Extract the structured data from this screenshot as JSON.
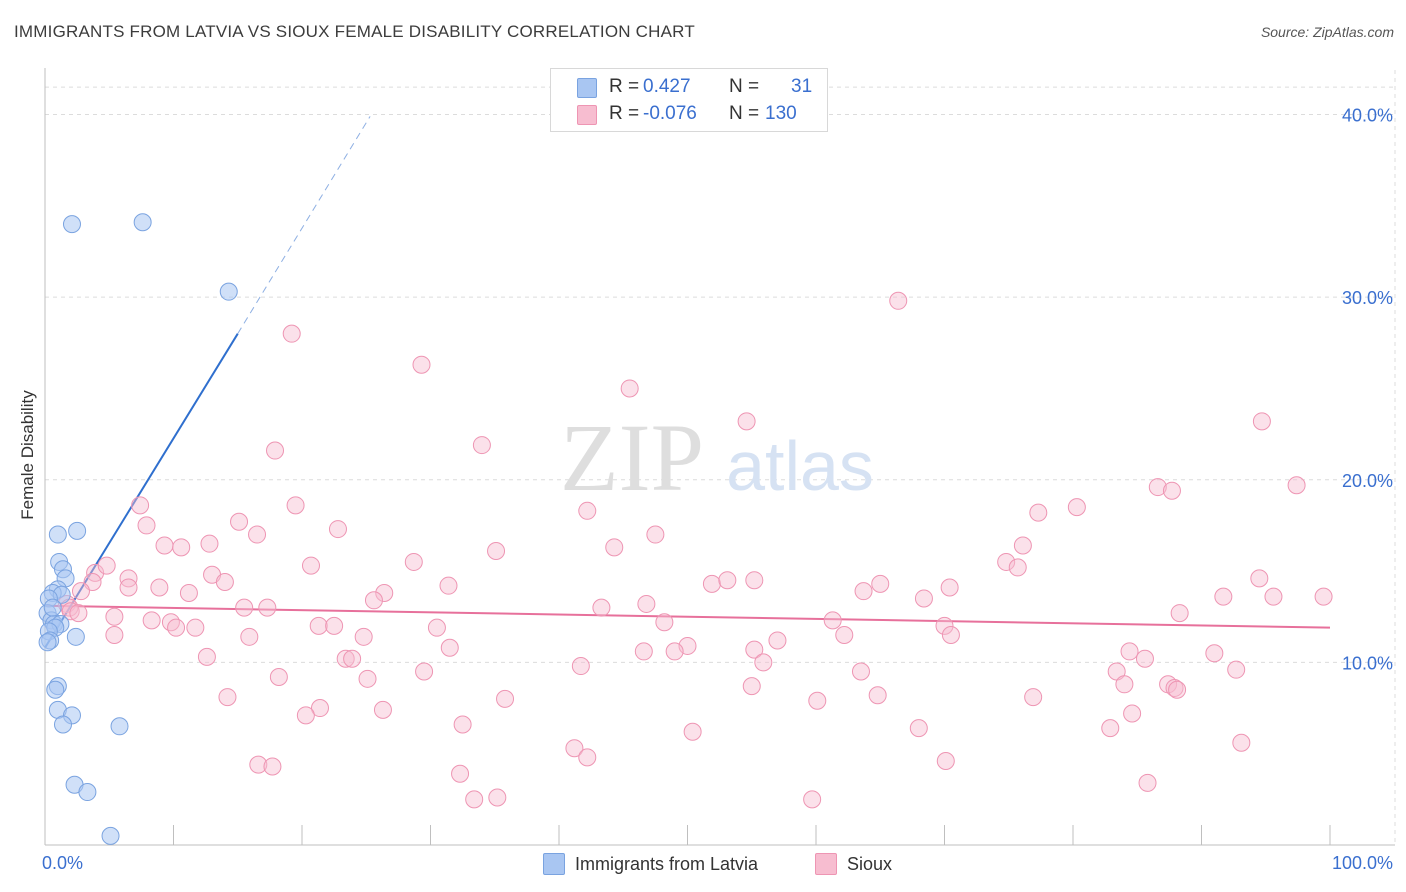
{
  "title": "IMMIGRANTS FROM LATVIA VS SIOUX FEMALE DISABILITY CORRELATION CHART",
  "source": "Source: ZipAtlas.com",
  "watermark": {
    "zip": "ZIP",
    "atlas": "atlas"
  },
  "legend": {
    "rows": [
      {
        "r_label": "R =",
        "r_value": "0.427",
        "n_label": "N =",
        "n_value": "31",
        "color": "#a9c6f2",
        "border": "#7aa3e0"
      },
      {
        "r_label": "R =",
        "r_value": "-0.076",
        "n_label": "N =",
        "n_value": "130",
        "color": "#f7bdd0",
        "border": "#ee95b3"
      }
    ]
  },
  "bottom_legend": [
    {
      "label": "Immigrants from Latvia",
      "color": "#a9c6f2",
      "border": "#7aa3e0"
    },
    {
      "label": "Sioux",
      "color": "#f7bdd0",
      "border": "#ee95b3"
    }
  ],
  "chart_data": {
    "type": "scatter",
    "title": "IMMIGRANTS FROM LATVIA VS SIOUX FEMALE DISABILITY CORRELATION CHART",
    "xlabel": "",
    "ylabel": "Female Disability",
    "xlim": [
      0,
      100
    ],
    "ylim": [
      0,
      42
    ],
    "x_tick_labels": {
      "left": "0.0%",
      "right": "100.0%"
    },
    "y_ticks": [
      {
        "value": 10,
        "label": "10.0%"
      },
      {
        "value": 20,
        "label": "20.0%"
      },
      {
        "value": 30,
        "label": "30.0%"
      },
      {
        "value": 40,
        "label": "40.0%"
      }
    ],
    "series": [
      {
        "name": "Immigrants from Latvia",
        "color": "#a9c6f2",
        "stroke": "#7aa3e0",
        "trend": {
          "x0": 0,
          "y0": 10.8,
          "x1": 15,
          "y1": 28.0,
          "x_dash_end": 25.3,
          "y_dash_end": 39.9,
          "color": "#2f6fce"
        },
        "points": [
          [
            2.1,
            34.0
          ],
          [
            7.6,
            34.1
          ],
          [
            14.3,
            30.3
          ],
          [
            2.5,
            17.2
          ],
          [
            1.0,
            17.0
          ],
          [
            1.1,
            15.5
          ],
          [
            1.4,
            15.1
          ],
          [
            1.6,
            14.6
          ],
          [
            1.0,
            14.0
          ],
          [
            0.6,
            13.8
          ],
          [
            1.3,
            13.7
          ],
          [
            0.3,
            13.5
          ],
          [
            0.2,
            12.7
          ],
          [
            0.5,
            12.3
          ],
          [
            0.7,
            12.1
          ],
          [
            1.2,
            12.1
          ],
          [
            0.8,
            11.9
          ],
          [
            0.3,
            11.7
          ],
          [
            2.4,
            11.4
          ],
          [
            0.4,
            11.2
          ],
          [
            0.2,
            11.1
          ],
          [
            1.0,
            8.7
          ],
          [
            0.8,
            8.5
          ],
          [
            1.0,
            7.4
          ],
          [
            2.1,
            7.1
          ],
          [
            1.4,
            6.6
          ],
          [
            5.8,
            6.5
          ],
          [
            2.3,
            3.3
          ],
          [
            3.3,
            2.9
          ],
          [
            5.1,
            0.5
          ],
          [
            0.6,
            13.0
          ]
        ]
      },
      {
        "name": "Sioux",
        "color": "#f7bdd0",
        "stroke": "#ee95b3",
        "trend": {
          "x0": 0,
          "y0": 13.1,
          "x1": 100,
          "y1": 11.9,
          "color": "#e7709b"
        },
        "points": [
          [
            66.4,
            29.8
          ],
          [
            19.2,
            28.0
          ],
          [
            29.3,
            26.3
          ],
          [
            45.5,
            25.0
          ],
          [
            54.6,
            23.2
          ],
          [
            94.7,
            23.2
          ],
          [
            17.9,
            21.6
          ],
          [
            34.0,
            21.9
          ],
          [
            86.6,
            19.6
          ],
          [
            97.4,
            19.7
          ],
          [
            87.7,
            19.4
          ],
          [
            7.4,
            18.6
          ],
          [
            19.5,
            18.6
          ],
          [
            42.2,
            18.3
          ],
          [
            77.3,
            18.2
          ],
          [
            80.3,
            18.5
          ],
          [
            7.9,
            17.5
          ],
          [
            15.1,
            17.7
          ],
          [
            22.8,
            17.3
          ],
          [
            16.5,
            17.0
          ],
          [
            47.5,
            17.0
          ],
          [
            9.3,
            16.4
          ],
          [
            10.6,
            16.3
          ],
          [
            12.8,
            16.5
          ],
          [
            35.1,
            16.1
          ],
          [
            44.3,
            16.3
          ],
          [
            76.1,
            16.4
          ],
          [
            28.7,
            15.5
          ],
          [
            20.7,
            15.3
          ],
          [
            74.8,
            15.5
          ],
          [
            75.7,
            15.2
          ],
          [
            3.9,
            14.9
          ],
          [
            4.8,
            15.3
          ],
          [
            13.0,
            14.8
          ],
          [
            3.7,
            14.4
          ],
          [
            6.5,
            14.6
          ],
          [
            6.5,
            14.1
          ],
          [
            14.0,
            14.4
          ],
          [
            8.9,
            14.1
          ],
          [
            31.4,
            14.2
          ],
          [
            51.9,
            14.3
          ],
          [
            53.1,
            14.5
          ],
          [
            55.2,
            14.5
          ],
          [
            65.0,
            14.3
          ],
          [
            70.4,
            14.1
          ],
          [
            2.8,
            13.9
          ],
          [
            11.2,
            13.8
          ],
          [
            26.4,
            13.8
          ],
          [
            63.7,
            13.9
          ],
          [
            91.7,
            13.6
          ],
          [
            95.6,
            13.6
          ],
          [
            99.5,
            13.6
          ],
          [
            94.5,
            14.6
          ],
          [
            25.6,
            13.4
          ],
          [
            68.4,
            13.5
          ],
          [
            1.7,
            13.2
          ],
          [
            1.9,
            13.0
          ],
          [
            2.0,
            12.8
          ],
          [
            2.6,
            12.7
          ],
          [
            15.5,
            13.0
          ],
          [
            17.3,
            13.0
          ],
          [
            43.3,
            13.0
          ],
          [
            46.8,
            13.2
          ],
          [
            88.3,
            12.7
          ],
          [
            5.4,
            12.5
          ],
          [
            8.3,
            12.3
          ],
          [
            9.8,
            12.2
          ],
          [
            10.2,
            11.9
          ],
          [
            11.7,
            11.9
          ],
          [
            21.3,
            12.0
          ],
          [
            22.5,
            12.0
          ],
          [
            30.5,
            11.9
          ],
          [
            48.2,
            12.2
          ],
          [
            61.3,
            12.3
          ],
          [
            70.0,
            12.0
          ],
          [
            5.4,
            11.5
          ],
          [
            15.9,
            11.4
          ],
          [
            24.8,
            11.4
          ],
          [
            62.2,
            11.5
          ],
          [
            70.5,
            11.5
          ],
          [
            57.0,
            11.2
          ],
          [
            31.5,
            10.8
          ],
          [
            50.0,
            10.9
          ],
          [
            46.6,
            10.6
          ],
          [
            49.0,
            10.6
          ],
          [
            55.2,
            10.7
          ],
          [
            84.4,
            10.6
          ],
          [
            12.6,
            10.3
          ],
          [
            23.4,
            10.2
          ],
          [
            23.9,
            10.2
          ],
          [
            85.6,
            10.2
          ],
          [
            91.0,
            10.5
          ],
          [
            55.9,
            10.0
          ],
          [
            41.7,
            9.8
          ],
          [
            29.5,
            9.5
          ],
          [
            63.5,
            9.5
          ],
          [
            83.4,
            9.5
          ],
          [
            92.7,
            9.6
          ],
          [
            18.2,
            9.2
          ],
          [
            25.1,
            9.1
          ],
          [
            55.0,
            8.7
          ],
          [
            84.0,
            8.8
          ],
          [
            87.4,
            8.8
          ],
          [
            87.9,
            8.6
          ],
          [
            88.1,
            8.5
          ],
          [
            14.2,
            8.1
          ],
          [
            35.8,
            8.0
          ],
          [
            60.1,
            7.9
          ],
          [
            64.8,
            8.2
          ],
          [
            76.9,
            8.1
          ],
          [
            21.4,
            7.5
          ],
          [
            26.3,
            7.4
          ],
          [
            20.3,
            7.1
          ],
          [
            84.6,
            7.2
          ],
          [
            32.5,
            6.6
          ],
          [
            50.4,
            6.2
          ],
          [
            68.0,
            6.4
          ],
          [
            82.9,
            6.4
          ],
          [
            41.2,
            5.3
          ],
          [
            42.2,
            4.8
          ],
          [
            93.1,
            5.6
          ],
          [
            70.1,
            4.6
          ],
          [
            16.6,
            4.4
          ],
          [
            17.7,
            4.3
          ],
          [
            32.3,
            3.9
          ],
          [
            85.8,
            3.4
          ],
          [
            33.4,
            2.5
          ],
          [
            35.2,
            2.6
          ],
          [
            59.7,
            2.5
          ]
        ]
      }
    ]
  }
}
